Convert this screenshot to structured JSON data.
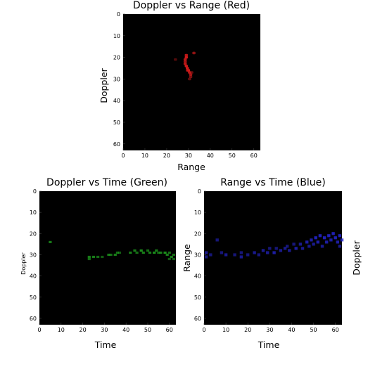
{
  "chart_data": [
    {
      "id": "red",
      "type": "heatmap",
      "title": "Doppler vs Range (Red)",
      "xlabel": "Range",
      "ylabel": "Doppler",
      "xlim": [
        0,
        63
      ],
      "ylim": [
        0,
        63
      ],
      "y_inverted": true,
      "x_ticks": [
        0,
        10,
        20,
        30,
        40,
        50,
        60
      ],
      "y_ticks": [
        0,
        10,
        20,
        30,
        40,
        50,
        60
      ],
      "color": "#cc1a1a",
      "background": "#000000",
      "points": [
        {
          "x": 29,
          "y": 19,
          "v": 0.9
        },
        {
          "x": 29,
          "y": 20,
          "v": 1.0
        },
        {
          "x": 28.5,
          "y": 21,
          "v": 0.9
        },
        {
          "x": 28.5,
          "y": 22,
          "v": 0.8
        },
        {
          "x": 28.5,
          "y": 23,
          "v": 0.9
        },
        {
          "x": 29,
          "y": 24,
          "v": 1.0
        },
        {
          "x": 29.5,
          "y": 25,
          "v": 1.0
        },
        {
          "x": 30,
          "y": 26,
          "v": 1.0
        },
        {
          "x": 30.5,
          "y": 27,
          "v": 0.9
        },
        {
          "x": 31,
          "y": 28,
          "v": 0.8
        },
        {
          "x": 31,
          "y": 29,
          "v": 0.6
        },
        {
          "x": 30.5,
          "y": 30,
          "v": 0.5
        },
        {
          "x": 29.5,
          "y": 26,
          "v": 0.7
        },
        {
          "x": 31.5,
          "y": 27,
          "v": 0.5
        },
        {
          "x": 32.5,
          "y": 18,
          "v": 0.7
        },
        {
          "x": 24,
          "y": 21,
          "v": 0.4
        }
      ]
    },
    {
      "id": "green",
      "type": "heatmap",
      "title": "Doppler vs Time (Green)",
      "xlabel": "Time",
      "ylabel": "Doppler",
      "xlim": [
        0,
        63
      ],
      "ylim": [
        0,
        63
      ],
      "y_inverted": true,
      "x_ticks": [
        0,
        10,
        20,
        30,
        40,
        50,
        60
      ],
      "y_ticks": [
        0,
        10,
        20,
        30,
        40,
        50,
        60
      ],
      "color": "#1e9a1e",
      "background": "#000000",
      "points": [
        {
          "x": 5,
          "y": 24,
          "v": 0.8
        },
        {
          "x": 23,
          "y": 31,
          "v": 0.8
        },
        {
          "x": 23,
          "y": 32,
          "v": 0.7
        },
        {
          "x": 25,
          "y": 31,
          "v": 0.8
        },
        {
          "x": 27,
          "y": 31,
          "v": 0.7
        },
        {
          "x": 29,
          "y": 31,
          "v": 0.6
        },
        {
          "x": 32,
          "y": 30,
          "v": 0.8
        },
        {
          "x": 33,
          "y": 30,
          "v": 0.7
        },
        {
          "x": 35,
          "y": 30,
          "v": 0.8
        },
        {
          "x": 36,
          "y": 29,
          "v": 0.7
        },
        {
          "x": 37,
          "y": 29,
          "v": 0.6
        },
        {
          "x": 42,
          "y": 29,
          "v": 0.8
        },
        {
          "x": 44,
          "y": 28,
          "v": 0.8
        },
        {
          "x": 45,
          "y": 29,
          "v": 0.7
        },
        {
          "x": 47,
          "y": 28,
          "v": 0.9
        },
        {
          "x": 48,
          "y": 29,
          "v": 0.8
        },
        {
          "x": 50,
          "y": 28,
          "v": 0.7
        },
        {
          "x": 51,
          "y": 29,
          "v": 0.8
        },
        {
          "x": 53,
          "y": 29,
          "v": 0.9
        },
        {
          "x": 54,
          "y": 28,
          "v": 0.8
        },
        {
          "x": 55,
          "y": 29,
          "v": 0.7
        },
        {
          "x": 56,
          "y": 29,
          "v": 0.8
        },
        {
          "x": 58,
          "y": 29,
          "v": 0.9
        },
        {
          "x": 59,
          "y": 30,
          "v": 0.8
        },
        {
          "x": 60,
          "y": 29,
          "v": 0.7
        },
        {
          "x": 61,
          "y": 31,
          "v": 0.8
        },
        {
          "x": 62,
          "y": 30,
          "v": 0.7
        },
        {
          "x": 62,
          "y": 32,
          "v": 0.6
        },
        {
          "x": 60,
          "y": 32,
          "v": 0.6
        }
      ]
    },
    {
      "id": "blue",
      "type": "heatmap",
      "title": "Range vs Time (Blue)",
      "xlabel": "Time",
      "ylabel": "Range",
      "xlim": [
        0,
        63
      ],
      "ylim": [
        0,
        63
      ],
      "y_inverted": true,
      "x_ticks": [
        0,
        10,
        20,
        30,
        40,
        50,
        60
      ],
      "y_ticks": [
        0,
        10,
        20,
        30,
        40,
        50,
        60
      ],
      "color": "#2424c8",
      "background": "#000000",
      "points": [
        {
          "x": 1,
          "y": 29,
          "v": 0.7
        },
        {
          "x": 1,
          "y": 31,
          "v": 0.6
        },
        {
          "x": 3,
          "y": 30,
          "v": 0.6
        },
        {
          "x": 6,
          "y": 23,
          "v": 0.6
        },
        {
          "x": 8,
          "y": 29,
          "v": 0.6
        },
        {
          "x": 10,
          "y": 30,
          "v": 0.7
        },
        {
          "x": 14,
          "y": 30,
          "v": 0.6
        },
        {
          "x": 17,
          "y": 29,
          "v": 0.6
        },
        {
          "x": 17,
          "y": 31,
          "v": 0.7
        },
        {
          "x": 20,
          "y": 30,
          "v": 0.6
        },
        {
          "x": 23,
          "y": 29,
          "v": 0.7
        },
        {
          "x": 25,
          "y": 30,
          "v": 0.6
        },
        {
          "x": 27,
          "y": 28,
          "v": 0.7
        },
        {
          "x": 29,
          "y": 29,
          "v": 0.7
        },
        {
          "x": 30,
          "y": 27,
          "v": 0.6
        },
        {
          "x": 32,
          "y": 29,
          "v": 0.8
        },
        {
          "x": 33,
          "y": 27,
          "v": 0.6
        },
        {
          "x": 35,
          "y": 28,
          "v": 0.7
        },
        {
          "x": 37,
          "y": 27,
          "v": 0.7
        },
        {
          "x": 38,
          "y": 26,
          "v": 0.6
        },
        {
          "x": 39,
          "y": 28,
          "v": 0.7
        },
        {
          "x": 41,
          "y": 25,
          "v": 0.6
        },
        {
          "x": 42,
          "y": 27,
          "v": 0.8
        },
        {
          "x": 44,
          "y": 25,
          "v": 0.7
        },
        {
          "x": 45,
          "y": 27,
          "v": 0.7
        },
        {
          "x": 47,
          "y": 24,
          "v": 0.8
        },
        {
          "x": 48,
          "y": 26,
          "v": 0.7
        },
        {
          "x": 49,
          "y": 23,
          "v": 0.8
        },
        {
          "x": 50,
          "y": 25,
          "v": 0.7
        },
        {
          "x": 51,
          "y": 22,
          "v": 0.9
        },
        {
          "x": 52,
          "y": 24,
          "v": 0.8
        },
        {
          "x": 53,
          "y": 21,
          "v": 0.9
        },
        {
          "x": 54,
          "y": 26,
          "v": 0.7
        },
        {
          "x": 55,
          "y": 22,
          "v": 0.9
        },
        {
          "x": 56,
          "y": 24,
          "v": 0.8
        },
        {
          "x": 57,
          "y": 21,
          "v": 0.9
        },
        {
          "x": 58,
          "y": 23,
          "v": 0.8
        },
        {
          "x": 59,
          "y": 20,
          "v": 0.9
        },
        {
          "x": 60,
          "y": 22,
          "v": 0.9
        },
        {
          "x": 61,
          "y": 24,
          "v": 0.8
        },
        {
          "x": 62,
          "y": 21,
          "v": 0.9
        },
        {
          "x": 62,
          "y": 26,
          "v": 0.7
        },
        {
          "x": 63,
          "y": 23,
          "v": 0.8
        }
      ]
    }
  ],
  "extra_labels": {
    "right_side_ylabel": "Doppler"
  }
}
